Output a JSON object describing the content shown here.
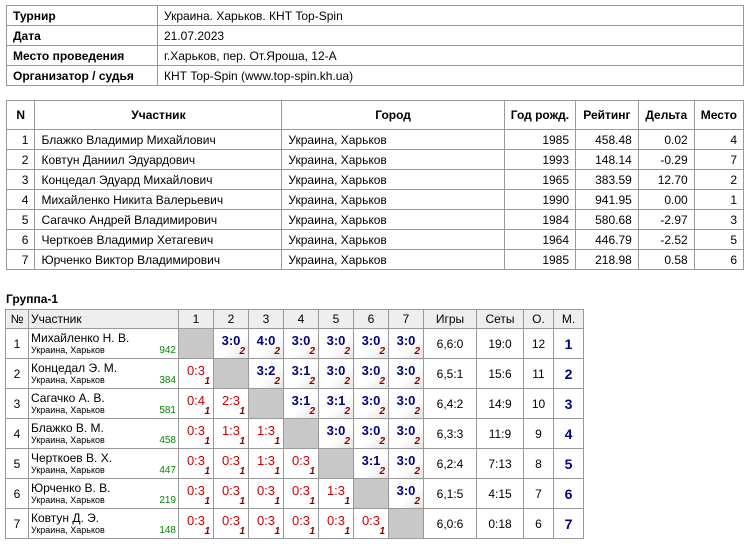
{
  "info": {
    "rows": [
      [
        "Турнир",
        "Украина. Харьков. КНТ Top-Spin"
      ],
      [
        "Дата",
        "21.07.2023"
      ],
      [
        "Место проведения",
        "г.Харьков, пер. От.Яроша, 12-А"
      ],
      [
        "Организатор / судья",
        "КНТ Top-Spin (www.top-spin.kh.ua)"
      ]
    ]
  },
  "participants": {
    "headers": [
      "N",
      "Участник",
      "Город",
      "Год рожд.",
      "Рейтинг",
      "Дельта",
      "Место"
    ],
    "rows": [
      [
        "1",
        "Блажко Владимир Михайлович",
        "Украина, Харьков",
        "1985",
        "458.48",
        "0.02",
        "4"
      ],
      [
        "2",
        "Ковтун Даниил Эдуардович",
        "Украина, Харьков",
        "1993",
        "148.14",
        "-0.29",
        "7"
      ],
      [
        "3",
        "Концедал Эдуард Михайлович",
        "Украина, Харьков",
        "1965",
        "383.59",
        "12.70",
        "2"
      ],
      [
        "4",
        "Михайленко Никита Валерьевич",
        "Украина, Харьков",
        "1990",
        "941.95",
        "0.00",
        "1"
      ],
      [
        "5",
        "Сагачко Андрей Владимирович",
        "Украина, Харьков",
        "1984",
        "580.68",
        "-2.97",
        "3"
      ],
      [
        "6",
        "Черткоев Владимир Хетагевич",
        "Украина, Харьков",
        "1964",
        "446.79",
        "-2.52",
        "5"
      ],
      [
        "7",
        "Юрченко Виктор Владимирович",
        "Украина, Харьков",
        "1985",
        "218.98",
        "0.58",
        "6"
      ]
    ]
  },
  "group": {
    "title": "Группа-1",
    "headers": [
      "№",
      "Участник",
      "1",
      "2",
      "3",
      "4",
      "5",
      "6",
      "7",
      "Игры",
      "Сеты",
      "О.",
      "М."
    ],
    "rows": [
      {
        "num": "1",
        "name": "Михайленко Н. В.",
        "city": "Украина, Харьков",
        "rating": "942",
        "results": [
          null,
          {
            "score": "3:0",
            "points": "2"
          },
          {
            "score": "4:0",
            "points": "2"
          },
          {
            "score": "3:0",
            "points": "2"
          },
          {
            "score": "3:0",
            "points": "2"
          },
          {
            "score": "3:0",
            "points": "2"
          },
          {
            "score": "3:0",
            "points": "2"
          }
        ],
        "games": "6,6:0",
        "sets": "19:0",
        "points": "12",
        "place": "1"
      },
      {
        "num": "2",
        "name": "Концедал Э. М.",
        "city": "Украина, Харьков",
        "rating": "384",
        "results": [
          {
            "score": "0:3",
            "points": "1"
          },
          null,
          {
            "score": "3:2",
            "points": "2"
          },
          {
            "score": "3:1",
            "points": "2"
          },
          {
            "score": "3:0",
            "points": "2"
          },
          {
            "score": "3:0",
            "points": "2"
          },
          {
            "score": "3:0",
            "points": "2"
          }
        ],
        "games": "6,5:1",
        "sets": "15:6",
        "points": "11",
        "place": "2"
      },
      {
        "num": "3",
        "name": "Сагачко А. В.",
        "city": "Украина, Харьков",
        "rating": "581",
        "results": [
          {
            "score": "0:4",
            "points": "1"
          },
          {
            "score": "2:3",
            "points": "1"
          },
          null,
          {
            "score": "3:1",
            "points": "2"
          },
          {
            "score": "3:1",
            "points": "2"
          },
          {
            "score": "3:0",
            "points": "2"
          },
          {
            "score": "3:0",
            "points": "2"
          }
        ],
        "games": "6,4:2",
        "sets": "14:9",
        "points": "10",
        "place": "3"
      },
      {
        "num": "4",
        "name": "Блажко В. М.",
        "city": "Украина, Харьков",
        "rating": "458",
        "results": [
          {
            "score": "0:3",
            "points": "1"
          },
          {
            "score": "1:3",
            "points": "1"
          },
          {
            "score": "1:3",
            "points": "1"
          },
          null,
          {
            "score": "3:0",
            "points": "2"
          },
          {
            "score": "3:0",
            "points": "2"
          },
          {
            "score": "3:0",
            "points": "2"
          }
        ],
        "games": "6,3:3",
        "sets": "11:9",
        "points": "9",
        "place": "4"
      },
      {
        "num": "5",
        "name": "Черткоев В. Х.",
        "city": "Украина, Харьков",
        "rating": "447",
        "results": [
          {
            "score": "0:3",
            "points": "1"
          },
          {
            "score": "0:3",
            "points": "1"
          },
          {
            "score": "1:3",
            "points": "1"
          },
          {
            "score": "0:3",
            "points": "1"
          },
          null,
          {
            "score": "3:1",
            "points": "2"
          },
          {
            "score": "3:0",
            "points": "2"
          }
        ],
        "games": "6,2:4",
        "sets": "7:13",
        "points": "8",
        "place": "5"
      },
      {
        "num": "6",
        "name": "Юрченко В. В.",
        "city": "Украина, Харьков",
        "rating": "219",
        "results": [
          {
            "score": "0:3",
            "points": "1"
          },
          {
            "score": "0:3",
            "points": "1"
          },
          {
            "score": "0:3",
            "points": "1"
          },
          {
            "score": "0:3",
            "points": "1"
          },
          {
            "score": "1:3",
            "points": "1"
          },
          null,
          {
            "score": "3:0",
            "points": "2"
          }
        ],
        "games": "6,1:5",
        "sets": "4:15",
        "points": "7",
        "place": "6"
      },
      {
        "num": "7",
        "name": "Ковтун Д. Э.",
        "city": "Украина, Харьков",
        "rating": "148",
        "results": [
          {
            "score": "0:3",
            "points": "1"
          },
          {
            "score": "0:3",
            "points": "1"
          },
          {
            "score": "0:3",
            "points": "1"
          },
          {
            "score": "0:3",
            "points": "1"
          },
          {
            "score": "0:3",
            "points": "1"
          },
          {
            "score": "0:3",
            "points": "1"
          },
          null
        ],
        "games": "6,0:6",
        "sets": "0:18",
        "points": "6",
        "place": "7"
      }
    ]
  }
}
